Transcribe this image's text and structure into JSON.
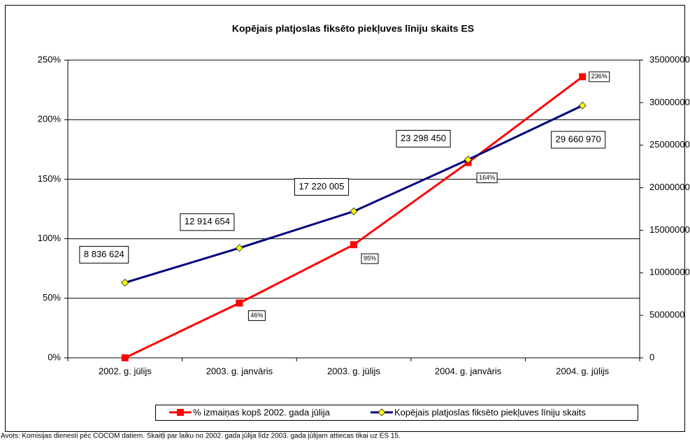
{
  "chart_data": {
    "type": "line",
    "title": "Kopējais platjoslas fiksēto piekļuves līniju skaits ES",
    "categories": [
      "2002. g. jūlijs",
      "2003. g. janvāris",
      "2003. g. jūlijs",
      "2004. g. janvāris",
      "2004. g. jūlijs"
    ],
    "series": [
      {
        "name": "% izmaiņas kopš 2002. gada jūlija",
        "color": "#ff0000",
        "values": [
          0,
          46,
          95,
          164,
          236
        ],
        "value_labels": [
          null,
          "46%",
          "95%",
          "164%",
          "236%"
        ]
      },
      {
        "name": "Kopējais platjoslas fiksēto piekļuves līniju skaits",
        "color": "#000080",
        "marker_color": "#ffff00",
        "axis": "y2",
        "values": [
          8836624,
          12914654,
          17220005,
          23298450,
          29660970
        ],
        "value_labels": [
          "8 836 624",
          "12 914 654",
          "17 220 005",
          "23 298 450",
          "29 660 970"
        ]
      }
    ],
    "ylim": [
      0,
      250
    ],
    "yticks": [
      {
        "value": 0,
        "label": "0%"
      },
      {
        "value": 50,
        "label": "50%"
      },
      {
        "value": 100,
        "label": "100%"
      },
      {
        "value": 150,
        "label": "150%"
      },
      {
        "value": 200,
        "label": "200%"
      },
      {
        "value": 250,
        "label": "250%"
      }
    ],
    "y2lim": [
      0,
      35000000
    ],
    "y2ticks": [
      0,
      5000000,
      10000000,
      15000000,
      20000000,
      25000000,
      30000000,
      35000000
    ],
    "grid": true,
    "legend": "bottom",
    "source": "Avots: Komisijas dienesti pēc COCOM datiem. Skaitļi par laiku no 2002. gada jūlija līdz 2003. gada jūlijam attiecas tikai uz ES 15."
  }
}
